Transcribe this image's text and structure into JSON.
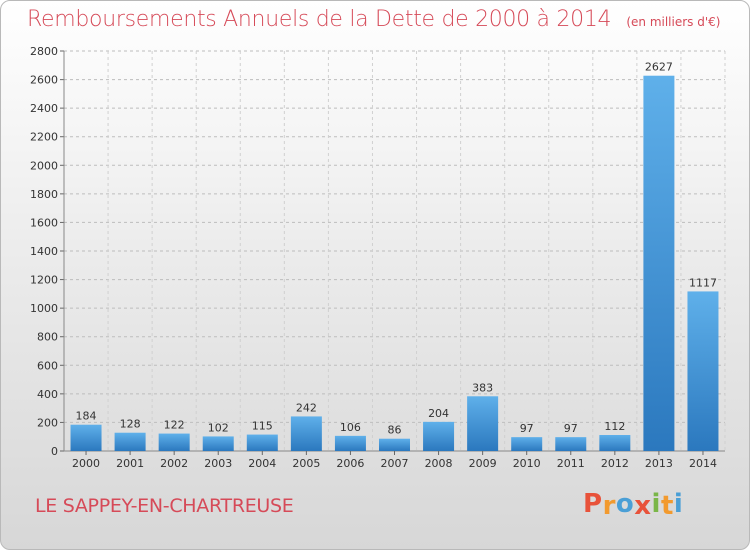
{
  "chart_data": {
    "type": "bar",
    "title": "Remboursements Annuels de la Dette de 2000 à 2014",
    "unit_label": "(en milliers d'€)",
    "categories": [
      "2000",
      "2001",
      "2002",
      "2003",
      "2004",
      "2005",
      "2006",
      "2007",
      "2008",
      "2009",
      "2010",
      "2011",
      "2012",
      "2013",
      "2014"
    ],
    "values": [
      184,
      128,
      122,
      102,
      115,
      242,
      106,
      86,
      204,
      383,
      97,
      97,
      112,
      2627,
      1117
    ],
    "ylim": [
      0,
      2800
    ],
    "yticks": [
      0,
      200,
      400,
      600,
      800,
      1000,
      1200,
      1400,
      1600,
      1800,
      2000,
      2200,
      2400,
      2600,
      2800
    ],
    "grid": true,
    "bar_color": "#3f95d8"
  },
  "commune": "LE SAPPEY-EN-CHARTREUSE",
  "logo": {
    "text": "Proxiti",
    "letters": [
      {
        "char": "P",
        "color": "#e8523a"
      },
      {
        "char": "r",
        "color": "#f29a2e"
      },
      {
        "char": "o",
        "color": "#4a9fd6"
      },
      {
        "char": "x",
        "color": "#e8523a"
      },
      {
        "char": "i",
        "color": "#7ab648"
      },
      {
        "char": "t",
        "color": "#f29a2e"
      },
      {
        "char": "i",
        "color": "#4a9fd6"
      }
    ]
  },
  "colors": {
    "title": "#d64a58",
    "axis_text": "#333333"
  }
}
